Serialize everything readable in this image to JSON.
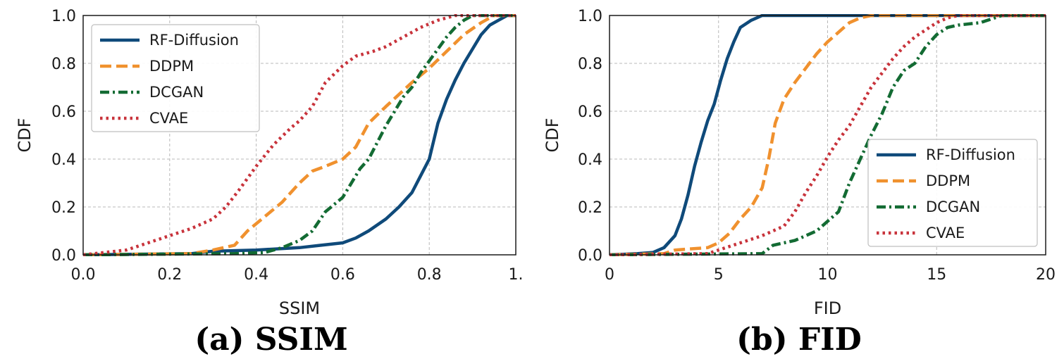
{
  "colors": {
    "RF-Diffusion": "#0f4a7a",
    "DDPM": "#f0912e",
    "DCGAN": "#136b33",
    "CVAE": "#c8333b"
  },
  "styles": {
    "RF-Diffusion": "solid",
    "DDPM": "dashed",
    "DCGAN": "dashdot",
    "CVAE": "dotted"
  },
  "chart_data": [
    {
      "type": "line",
      "caption": "(a) SSIM",
      "xlabel": "SSIM",
      "ylabel": "CDF",
      "xlim": [
        0.0,
        1.0
      ],
      "ylim": [
        0.0,
        1.0
      ],
      "xticks": [
        "0.0",
        "0.2",
        "0.4",
        "0.6",
        "0.8",
        "1."
      ],
      "yticks": [
        "0.0",
        "0.2",
        "0.4",
        "0.6",
        "0.8",
        "1.0"
      ],
      "grid": true,
      "legend_position": "top-left",
      "series": [
        {
          "name": "RF-Diffusion",
          "x": [
            0.0,
            0.25,
            0.3,
            0.4,
            0.5,
            0.55,
            0.6,
            0.63,
            0.66,
            0.7,
            0.73,
            0.76,
            0.78,
            0.8,
            0.82,
            0.84,
            0.86,
            0.88,
            0.9,
            0.92,
            0.94,
            0.96,
            0.98,
            1.0
          ],
          "y": [
            0.0,
            0.005,
            0.015,
            0.02,
            0.03,
            0.04,
            0.05,
            0.07,
            0.1,
            0.15,
            0.2,
            0.26,
            0.33,
            0.4,
            0.55,
            0.65,
            0.73,
            0.8,
            0.86,
            0.92,
            0.96,
            0.98,
            1.0,
            1.0
          ]
        },
        {
          "name": "DDPM",
          "x": [
            0.0,
            0.25,
            0.3,
            0.35,
            0.38,
            0.42,
            0.46,
            0.5,
            0.53,
            0.56,
            0.6,
            0.63,
            0.66,
            0.7,
            0.73,
            0.76,
            0.8,
            0.84,
            0.88,
            0.92,
            0.95,
            1.0
          ],
          "y": [
            0.0,
            0.005,
            0.02,
            0.04,
            0.1,
            0.16,
            0.22,
            0.3,
            0.35,
            0.37,
            0.4,
            0.45,
            0.55,
            0.62,
            0.67,
            0.72,
            0.78,
            0.85,
            0.92,
            0.97,
            1.0,
            1.0
          ]
        },
        {
          "name": "DCGAN",
          "x": [
            0.0,
            0.35,
            0.42,
            0.46,
            0.5,
            0.53,
            0.56,
            0.6,
            0.62,
            0.64,
            0.66,
            0.68,
            0.7,
            0.72,
            0.74,
            0.76,
            0.78,
            0.8,
            0.82,
            0.84,
            0.86,
            0.88,
            0.9,
            0.92,
            1.0
          ],
          "y": [
            0.0,
            0.005,
            0.01,
            0.03,
            0.06,
            0.1,
            0.18,
            0.24,
            0.3,
            0.36,
            0.4,
            0.47,
            0.54,
            0.6,
            0.66,
            0.7,
            0.76,
            0.81,
            0.86,
            0.91,
            0.95,
            0.98,
            1.0,
            1.0,
            1.0
          ]
        },
        {
          "name": "CVAE",
          "x": [
            0.0,
            0.05,
            0.1,
            0.15,
            0.2,
            0.25,
            0.3,
            0.33,
            0.36,
            0.4,
            0.44,
            0.48,
            0.5,
            0.53,
            0.56,
            0.6,
            0.63,
            0.67,
            0.7,
            0.74,
            0.78,
            0.82,
            0.86,
            0.9,
            1.0
          ],
          "y": [
            0.0,
            0.01,
            0.02,
            0.05,
            0.08,
            0.11,
            0.15,
            0.2,
            0.27,
            0.37,
            0.46,
            0.53,
            0.56,
            0.62,
            0.72,
            0.79,
            0.83,
            0.85,
            0.87,
            0.91,
            0.95,
            0.98,
            1.0,
            1.0,
            1.0
          ]
        }
      ]
    },
    {
      "type": "line",
      "caption": "(b) FID",
      "xlabel": "FID",
      "ylabel": "CDF",
      "xlim": [
        0,
        20
      ],
      "ylim": [
        0.0,
        1.0
      ],
      "xticks": [
        "0",
        "5",
        "10",
        "15",
        "20"
      ],
      "yticks": [
        "0.0",
        "0.2",
        "0.4",
        "0.6",
        "0.8",
        "1.0"
      ],
      "grid": true,
      "legend_position": "lower-right",
      "series": [
        {
          "name": "RF-Diffusion",
          "x": [
            0.0,
            1.3,
            2.0,
            2.5,
            3.0,
            3.3,
            3.6,
            3.9,
            4.2,
            4.5,
            4.8,
            5.1,
            5.4,
            5.7,
            6.0,
            6.5,
            7.0,
            8.0,
            20.0
          ],
          "y": [
            0.0,
            0.005,
            0.01,
            0.03,
            0.08,
            0.15,
            0.25,
            0.37,
            0.47,
            0.56,
            0.63,
            0.73,
            0.82,
            0.89,
            0.95,
            0.98,
            1.0,
            1.0,
            1.0
          ]
        },
        {
          "name": "DDPM",
          "x": [
            0.0,
            2.5,
            3.0,
            4.5,
            5.0,
            5.5,
            6.0,
            6.5,
            7.0,
            7.3,
            7.6,
            8.0,
            8.5,
            9.0,
            9.5,
            10.0,
            10.5,
            11.0,
            11.5,
            12.0,
            13.0,
            20.0
          ],
          "y": [
            0.0,
            0.005,
            0.02,
            0.03,
            0.05,
            0.09,
            0.15,
            0.2,
            0.28,
            0.4,
            0.55,
            0.65,
            0.72,
            0.78,
            0.84,
            0.89,
            0.93,
            0.97,
            0.99,
            1.0,
            1.0,
            1.0
          ]
        },
        {
          "name": "DCGAN",
          "x": [
            0.0,
            7.0,
            7.5,
            8.5,
            9.5,
            10.5,
            11.0,
            11.5,
            12.0,
            12.5,
            13.0,
            13.5,
            14.0,
            14.5,
            15.0,
            15.5,
            16.0,
            17.0,
            18.0,
            20.0
          ],
          "y": [
            0.0,
            0.005,
            0.04,
            0.06,
            0.1,
            0.18,
            0.3,
            0.4,
            0.5,
            0.59,
            0.7,
            0.77,
            0.8,
            0.87,
            0.92,
            0.95,
            0.96,
            0.97,
            1.0,
            1.0
          ]
        },
        {
          "name": "CVAE",
          "x": [
            0.0,
            4.5,
            5.0,
            6.0,
            7.0,
            8.0,
            8.5,
            9.0,
            9.5,
            10.0,
            10.5,
            11.0,
            11.5,
            12.0,
            12.5,
            13.0,
            13.5,
            14.0,
            14.5,
            15.0,
            15.5,
            16.0,
            20.0
          ],
          "y": [
            0.0,
            0.005,
            0.02,
            0.05,
            0.08,
            0.12,
            0.18,
            0.26,
            0.33,
            0.41,
            0.48,
            0.54,
            0.62,
            0.7,
            0.76,
            0.82,
            0.87,
            0.91,
            0.94,
            0.97,
            0.99,
            1.0,
            1.0
          ]
        }
      ]
    }
  ]
}
